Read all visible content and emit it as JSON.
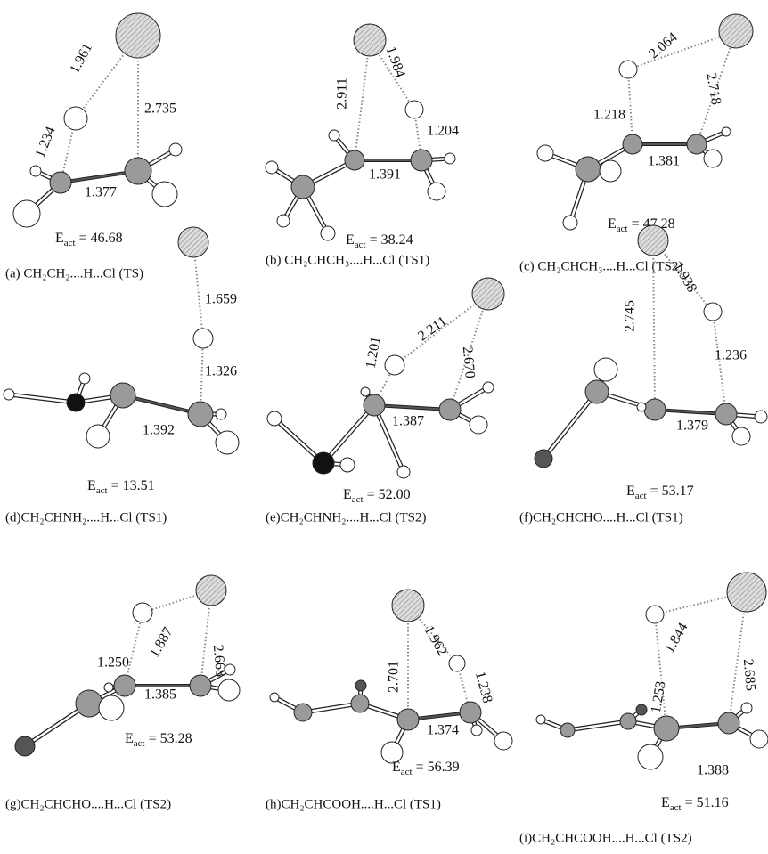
{
  "panels": [
    {
      "bond_lengths": [
        "1.961",
        "2.735",
        "1.234",
        "1.377"
      ],
      "energy": {
        "symbol": "E",
        "subscript": "act",
        "value": "= 46.68"
      },
      "caption": "(a) CH₂CH₂....H...Cl (TS)"
    },
    {
      "bond_lengths": [
        "2.911",
        "1.984",
        "1.204",
        "1.391"
      ],
      "energy": {
        "symbol": "E",
        "subscript": "act",
        "value": "= 38.24"
      },
      "caption": "(b) CH₂CHCH₃....H...Cl (TS1)"
    },
    {
      "bond_lengths": [
        "2.064",
        "2.718",
        "1.218",
        "1.381"
      ],
      "energy": {
        "symbol": "E",
        "subscript": "act",
        "value": "= 47.28"
      },
      "caption": "(c) CH₂CHCH₃....H...Cl (TS2)"
    },
    {
      "bond_lengths": [
        "1.659",
        "1.326",
        "1.392"
      ],
      "energy": {
        "symbol": "E",
        "subscript": "act",
        "value": "= 13.51"
      },
      "caption": "(d)CH₂CHNH₂....H...Cl (TS1)"
    },
    {
      "bond_lengths": [
        "2.211",
        "2.670",
        "1.201",
        "1.387"
      ],
      "energy": {
        "symbol": "E",
        "subscript": "act",
        "value": "= 52.00"
      },
      "caption": "(e)CH₂CHNH₂....H...Cl (TS2)"
    },
    {
      "bond_lengths": [
        "1.938",
        "2.745",
        "1.236",
        "1.379"
      ],
      "energy": {
        "symbol": "E",
        "subscript": "act",
        "value": "= 53.17"
      },
      "caption": "(f)CH₂CHCHO....H...Cl (TS1)"
    },
    {
      "bond_lengths": [
        "1.887",
        "2.668",
        "1.250",
        "1.385"
      ],
      "energy": {
        "symbol": "E",
        "subscript": "act",
        "value": "= 53.28"
      },
      "caption": "(g)CH₂CHCHO....H...Cl (TS2)"
    },
    {
      "bond_lengths": [
        "1.962",
        "2.701",
        "1.238",
        "1.374"
      ],
      "energy": {
        "symbol": "E",
        "subscript": "act",
        "value": "= 56.39"
      },
      "caption": "(h)CH₂CHCOOH....H...Cl (TS1)"
    },
    {
      "bond_lengths": [
        "1.844",
        "2.685",
        "1.253",
        "1.388"
      ],
      "energy": {
        "symbol": "E",
        "subscript": "act",
        "value": "= 51.16"
      },
      "caption": "(i)CH₂CHCOOH....H...Cl (TS2)"
    }
  ]
}
